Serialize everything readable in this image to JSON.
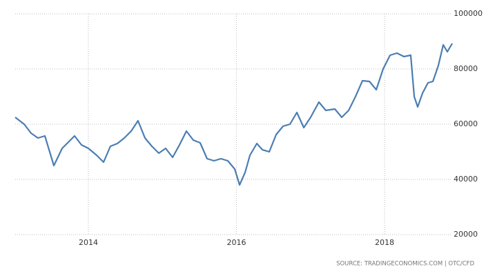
{
  "chart_data": {
    "type": "line",
    "source": "SOURCE: TRADINGECONOMICS.COM | OTC/CFD",
    "x": [
      2013.012,
      2013.133,
      2013.226,
      2013.319,
      2013.413,
      2013.534,
      2013.646,
      2013.739,
      2013.814,
      2013.907,
      2014.0,
      2014.112,
      2014.205,
      2014.298,
      2014.392,
      2014.485,
      2014.578,
      2014.671,
      2014.765,
      2014.858,
      2014.951,
      2015.044,
      2015.138,
      2015.231,
      2015.324,
      2015.417,
      2015.51,
      2015.604,
      2015.697,
      2015.79,
      2015.883,
      2015.977,
      2016.042,
      2016.117,
      2016.182,
      2016.275,
      2016.35,
      2016.443,
      2016.536,
      2016.629,
      2016.723,
      2016.816,
      2016.909,
      2017.002,
      2017.114,
      2017.207,
      2017.329,
      2017.422,
      2017.515,
      2017.608,
      2017.702,
      2017.795,
      2017.888,
      2017.981,
      2018.075,
      2018.168,
      2018.261,
      2018.354,
      2018.401,
      2018.448,
      2018.513,
      2018.587,
      2018.653,
      2018.727,
      2018.793,
      2018.848,
      2018.914
    ],
    "series": [
      {
        "color": "#4a7db3",
        "values": [
          62500,
          60000,
          56750,
          55000,
          55750,
          45000,
          51250,
          53750,
          55750,
          52500,
          51250,
          48750,
          46250,
          52000,
          53000,
          55000,
          57500,
          61250,
          55000,
          52000,
          49500,
          51250,
          48000,
          52500,
          57500,
          54250,
          53250,
          47500,
          46750,
          47500,
          46750,
          43750,
          38000,
          42500,
          48750,
          53000,
          50750,
          50000,
          56250,
          59250,
          60000,
          64250,
          58750,
          62500,
          68000,
          65000,
          65500,
          62500,
          65000,
          70000,
          75750,
          75500,
          72500,
          80000,
          85000,
          85750,
          84500,
          85000,
          70000,
          66250,
          71250,
          75000,
          75500,
          81250,
          88750,
          86250,
          89250
        ]
      }
    ],
    "xlim": [
      2013.012,
      2018.914
    ],
    "xticks": [
      2014,
      2016,
      2018
    ],
    "ylim": [
      20000,
      100000
    ],
    "yticks": [
      20000,
      40000,
      60000,
      80000,
      100000
    ],
    "grid": true
  }
}
